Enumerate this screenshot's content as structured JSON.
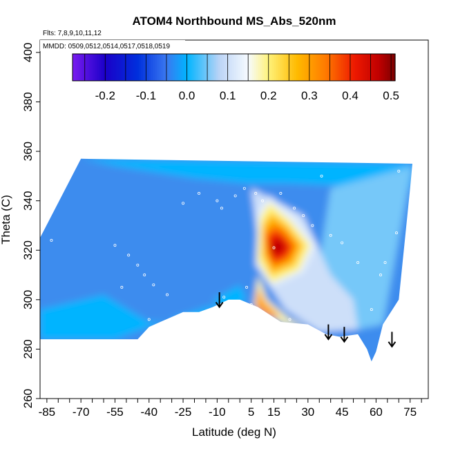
{
  "chart_data": {
    "type": "heatmap",
    "title": "ATOM4 Northbound MS_Abs_520nm",
    "info_lines": [
      "Flts: 7,8,9,10,11,12",
      "MMDD: 0509,0512,0514,0517,0518,0519"
    ],
    "xlabel": "Latitude (deg N)",
    "ylabel": "Theta (C)",
    "xlim": [
      -88,
      83
    ],
    "ylim": [
      260,
      405
    ],
    "x_ticks": [
      -85,
      -70,
      -55,
      -40,
      -25,
      -10,
      5,
      15,
      30,
      45,
      60,
      75
    ],
    "x_ticks_minor": [
      -80,
      -75,
      -65,
      -60,
      -50,
      -45,
      -35,
      -30,
      -20,
      -15,
      -5,
      0,
      10,
      20,
      25,
      35,
      40,
      50,
      55,
      65,
      70,
      80
    ],
    "y_ticks": [
      260,
      280,
      300,
      320,
      340,
      360,
      380,
      400
    ],
    "colorbar": {
      "range": [
        -0.28,
        0.51
      ],
      "ticks": [
        -0.2,
        -0.1,
        0.0,
        0.1,
        0.2,
        0.3,
        0.4,
        0.5
      ],
      "tick_labels": [
        "-0.2",
        "-0.1",
        "0.0",
        "0.1",
        "0.2",
        "0.3",
        "0.4",
        "0.5"
      ],
      "stops": [
        {
          "v": -0.28,
          "c": "#7a1cf0"
        },
        {
          "v": -0.2,
          "c": "#1a00c8"
        },
        {
          "v": -0.12,
          "c": "#0030dd"
        },
        {
          "v": -0.05,
          "c": "#3a78f0"
        },
        {
          "v": 0.0,
          "c": "#00b4ff"
        },
        {
          "v": 0.08,
          "c": "#bcd4f6"
        },
        {
          "v": 0.15,
          "c": "#f6fbff"
        },
        {
          "v": 0.2,
          "c": "#fff27a"
        },
        {
          "v": 0.27,
          "c": "#ffba00"
        },
        {
          "v": 0.34,
          "c": "#ff7a00"
        },
        {
          "v": 0.41,
          "c": "#ee1a00"
        },
        {
          "v": 0.47,
          "c": "#c00000"
        },
        {
          "v": 0.51,
          "c": "#7a0000"
        }
      ]
    },
    "field": {
      "background": "#3c8cee",
      "regions": [
        {
          "value": 0.0,
          "polygon": [
            [
              3,
              347
            ],
            [
              76,
              355
            ],
            [
              76,
              349
            ],
            [
              3,
              347
            ]
          ]
        },
        {
          "value": 0.0,
          "polygon": [
            [
              -70,
              357
            ],
            [
              76,
              355
            ],
            [
              75,
              345
            ],
            [
              20,
              347
            ],
            [
              3,
              347
            ],
            [
              -20,
              349
            ],
            [
              -55,
              354
            ],
            [
              -70,
              357
            ]
          ]
        },
        {
          "value": 0.05,
          "polygon": [
            [
              40,
              345
            ],
            [
              76,
              354
            ],
            [
              63,
              290
            ],
            [
              52,
              288
            ],
            [
              35,
              315
            ],
            [
              40,
              345
            ]
          ]
        },
        {
          "value": 0.0,
          "polygon": [
            [
              -88,
              296
            ],
            [
              -60,
              302
            ],
            [
              -40,
              291
            ],
            [
              -20,
              292
            ],
            [
              -5,
              299
            ],
            [
              -15,
              297
            ],
            [
              -40,
              289
            ],
            [
              -55,
              284
            ],
            [
              -88,
              284
            ]
          ]
        },
        {
          "value": 0.0,
          "polygon": [
            [
              -12,
              300
            ],
            [
              0,
              306
            ],
            [
              3,
              300
            ],
            [
              -5,
              296
            ],
            [
              -12,
              300
            ]
          ]
        },
        {
          "value": 0.1,
          "polygon": [
            [
              5,
              345
            ],
            [
              28,
              334
            ],
            [
              40,
              310
            ],
            [
              50,
              300
            ],
            [
              52,
              288
            ],
            [
              35,
              287
            ],
            [
              20,
              296
            ],
            [
              10,
              310
            ],
            [
              5,
              345
            ]
          ]
        },
        {
          "value": 0.13,
          "polygon": [
            [
              8,
              336
            ],
            [
              13,
              342
            ],
            [
              24,
              334
            ],
            [
              34,
              322
            ],
            [
              28,
              311
            ],
            [
              14,
              305
            ],
            [
              7,
              314
            ],
            [
              8,
              336
            ]
          ]
        },
        {
          "value": 0.2,
          "polygon": [
            [
              9,
              333
            ],
            [
              13,
              339
            ],
            [
              22,
              332
            ],
            [
              31,
              322
            ],
            [
              26,
              312
            ],
            [
              14,
              307
            ],
            [
              8,
              316
            ],
            [
              9,
              333
            ]
          ]
        },
        {
          "value": 0.27,
          "polygon": [
            [
              10,
              330
            ],
            [
              14,
              335
            ],
            [
              21,
              330
            ],
            [
              28,
              322
            ],
            [
              24,
              314
            ],
            [
              14,
              310
            ],
            [
              10,
              318
            ],
            [
              10,
              330
            ]
          ]
        },
        {
          "value": 0.34,
          "polygon": [
            [
              11,
              327
            ],
            [
              15,
              331
            ],
            [
              20,
              328
            ],
            [
              25,
              322
            ],
            [
              22,
              316
            ],
            [
              15,
              313
            ],
            [
              12,
              318
            ],
            [
              11,
              327
            ]
          ]
        },
        {
          "value": 0.41,
          "polygon": [
            [
              12,
              325
            ],
            [
              16,
              328
            ],
            [
              20,
              325
            ],
            [
              23,
              321
            ],
            [
              20,
              317
            ],
            [
              15,
              315
            ],
            [
              13,
              319
            ],
            [
              12,
              325
            ]
          ]
        },
        {
          "value": 0.47,
          "polygon": [
            [
              14,
              323
            ],
            [
              17,
              325
            ],
            [
              20,
              322
            ],
            [
              19,
              319
            ],
            [
              15,
              318
            ],
            [
              14,
              320
            ]
          ]
        },
        {
          "value": 0.18,
          "polygon": [
            [
              6,
              297
            ],
            [
              8,
              310
            ],
            [
              12,
              300
            ],
            [
              22,
              292
            ],
            [
              30,
              289
            ],
            [
              20,
              290
            ],
            [
              10,
              295
            ],
            [
              6,
              297
            ]
          ]
        },
        {
          "value": 0.3,
          "polygon": [
            [
              7,
              297
            ],
            [
              8,
              305
            ],
            [
              11,
              299
            ],
            [
              18,
              293
            ],
            [
              12,
              293
            ],
            [
              7,
              297
            ]
          ]
        }
      ],
      "outline": [
        [
          -88,
          284
        ],
        [
          -88,
          325
        ],
        [
          -70,
          357
        ],
        [
          76,
          355
        ],
        [
          75,
          345
        ],
        [
          70,
          300
        ],
        [
          63,
          290
        ],
        [
          60,
          279
        ],
        [
          58,
          275
        ],
        [
          56,
          280
        ],
        [
          52,
          286
        ],
        [
          44,
          285
        ],
        [
          38,
          286
        ],
        [
          30,
          290
        ],
        [
          18,
          291
        ],
        [
          8,
          297
        ],
        [
          0,
          300
        ],
        [
          -5,
          300
        ],
        [
          -12,
          297
        ],
        [
          -18,
          295
        ],
        [
          -25,
          295
        ],
        [
          -35,
          291
        ],
        [
          -40,
          289
        ],
        [
          -45,
          284
        ],
        [
          -88,
          284
        ]
      ]
    },
    "points": [
      [
        -83,
        324
      ],
      [
        -55,
        322
      ],
      [
        -49,
        318
      ],
      [
        -45,
        314
      ],
      [
        -42,
        310
      ],
      [
        -38,
        306
      ],
      [
        -32,
        302
      ],
      [
        -25,
        339
      ],
      [
        -18,
        343
      ],
      [
        -10,
        340
      ],
      [
        -8,
        337
      ],
      [
        -2,
        342
      ],
      [
        2,
        345
      ],
      [
        7,
        343
      ],
      [
        10,
        340
      ],
      [
        15,
        321
      ],
      [
        18,
        343
      ],
      [
        24,
        337
      ],
      [
        28,
        334
      ],
      [
        32,
        330
      ],
      [
        36,
        350
      ],
      [
        40,
        326
      ],
      [
        45,
        323
      ],
      [
        52,
        315
      ],
      [
        58,
        296
      ],
      [
        62,
        310
      ],
      [
        64,
        315
      ],
      [
        69,
        327
      ],
      [
        70,
        352
      ],
      [
        -52,
        305
      ],
      [
        -40,
        292
      ],
      [
        -7,
        301
      ],
      [
        3,
        305
      ],
      [
        5,
        298
      ],
      [
        12,
        293
      ],
      [
        22,
        292
      ]
    ],
    "arrows": [
      {
        "x": -9,
        "y_top": 303,
        "y_bottom": 297
      },
      {
        "x": 39,
        "y_top": 290,
        "y_bottom": 284
      },
      {
        "x": 46,
        "y_top": 289,
        "y_bottom": 283
      },
      {
        "x": 67,
        "y_top": 287,
        "y_bottom": 281
      }
    ]
  }
}
